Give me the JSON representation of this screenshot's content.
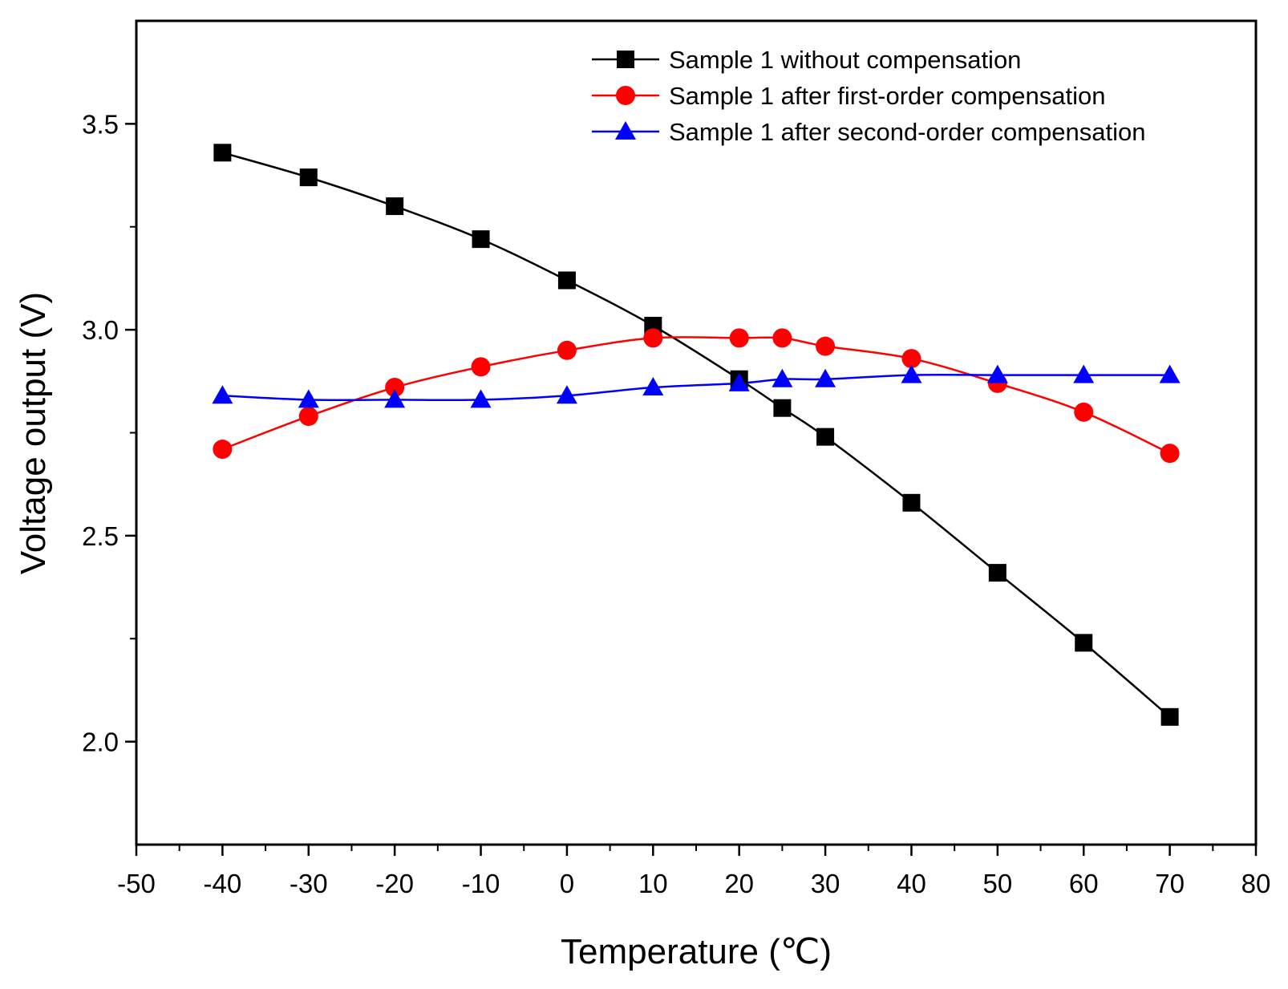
{
  "chart_data": {
    "type": "line",
    "title": "",
    "xlabel": "Temperature (℃)",
    "ylabel": "Voltage output (V)",
    "xlim": [
      -50,
      80
    ],
    "ylim": [
      1.75,
      3.75
    ],
    "x_ticks": [
      -50,
      -40,
      -30,
      -20,
      -10,
      0,
      10,
      20,
      30,
      40,
      50,
      60,
      70,
      80
    ],
    "y_ticks": [
      2.0,
      2.5,
      3.0,
      3.5
    ],
    "x_tick_labels": [
      "-50",
      "-40",
      "-30",
      "-20",
      "-10",
      "0",
      "10",
      "20",
      "30",
      "40",
      "50",
      "60",
      "70",
      "80"
    ],
    "y_tick_labels": [
      "2.0",
      "2.5",
      "3.0",
      "3.5"
    ],
    "grid": false,
    "legend_position": "top-right",
    "x": [
      -40,
      -30,
      -20,
      -10,
      0,
      10,
      20,
      25,
      30,
      40,
      50,
      60,
      70
    ],
    "series": [
      {
        "name": "Sample 1 without compensation",
        "color": "#000000",
        "marker": "square",
        "x": [
          -40,
          -30,
          -20,
          -10,
          0,
          10,
          20,
          25,
          30,
          40,
          50,
          60,
          70
        ],
        "values": [
          3.43,
          3.37,
          3.3,
          3.22,
          3.12,
          3.01,
          2.88,
          2.81,
          2.74,
          2.58,
          2.41,
          2.24,
          2.06
        ]
      },
      {
        "name": "Sample 1 after first-order compensation",
        "color": "#ff0000",
        "marker": "circle",
        "x": [
          -40,
          -30,
          -20,
          -10,
          0,
          10,
          20,
          25,
          30,
          40,
          50,
          60,
          70
        ],
        "values": [
          2.71,
          2.79,
          2.86,
          2.91,
          2.95,
          2.98,
          2.98,
          2.98,
          2.96,
          2.93,
          2.87,
          2.8,
          2.7
        ]
      },
      {
        "name": "Sample 1 after second-order compensation",
        "color": "#0000ff",
        "marker": "triangle",
        "x": [
          -40,
          -30,
          -20,
          -10,
          0,
          10,
          20,
          25,
          30,
          40,
          50,
          60,
          70
        ],
        "values": [
          2.84,
          2.83,
          2.83,
          2.83,
          2.84,
          2.86,
          2.87,
          2.88,
          2.88,
          2.89,
          2.89,
          2.89,
          2.89
        ]
      }
    ]
  }
}
